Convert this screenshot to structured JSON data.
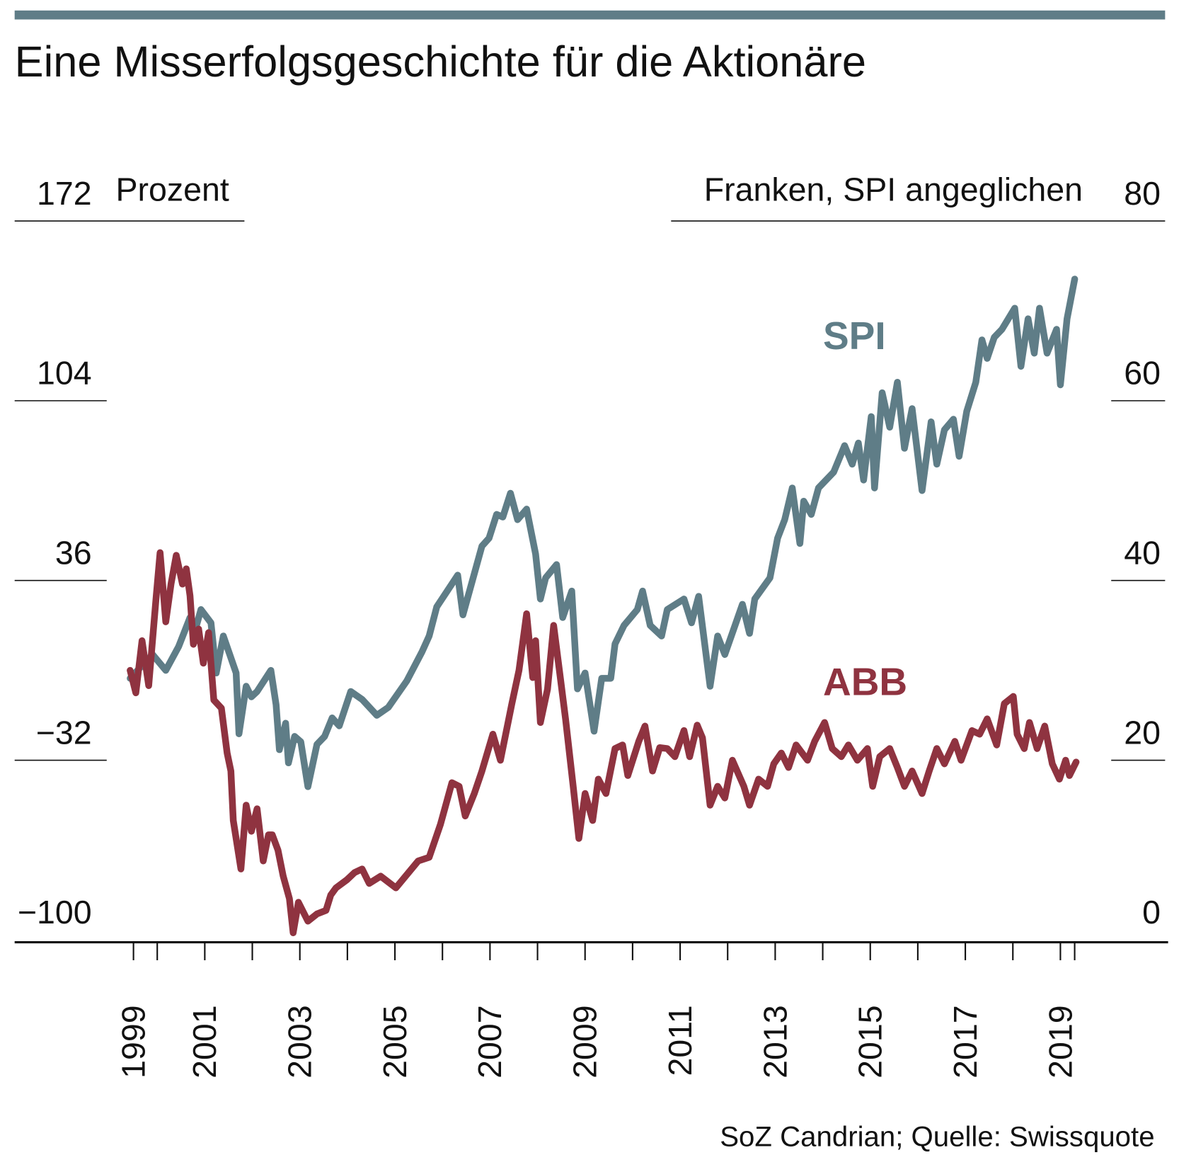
{
  "chart_data": {
    "type": "line",
    "title": "Eine Misserfolgsgeschichte für die Aktionäre",
    "y_label": "Prozent",
    "y2_label": "Franken, SPI angeglichen",
    "source": "SoZ Candrian; Quelle: Swissquote",
    "xlim": [
      1997,
      2021.25
    ],
    "xticks": [
      {
        "value": 1999.5,
        "label": "1999"
      },
      2001,
      2003,
      2005,
      2007,
      2009,
      2011,
      2013,
      2015,
      2017,
      2019
    ],
    "xminorticks": [
      2000,
      2002,
      2004,
      2006,
      2008,
      2010,
      2012,
      2014,
      2016,
      2018,
      2019.3
    ],
    "ylim": [
      -100,
      172
    ],
    "yticks": [
      {
        "value": -100,
        "label": "−100"
      },
      {
        "value": -32,
        "label": "−32"
      },
      36,
      104,
      172
    ],
    "y2lim": [
      0,
      80
    ],
    "y2ticks": [
      0,
      20,
      40,
      60,
      80
    ],
    "series": [
      {
        "name": "SPI",
        "color": "#5f7d87",
        "axis": "y",
        "x": [
          1999.43,
          1999.9,
          2000.18,
          2000.45,
          2000.69,
          2000.81,
          2000.92,
          2001.13,
          2001.24,
          2001.39,
          2001.66,
          2001.72,
          2001.87,
          2001.98,
          2002.1,
          2002.39,
          2002.5,
          2002.57,
          2002.7,
          2002.76,
          2002.89,
          2003.02,
          2003.17,
          2003.36,
          2003.52,
          2003.68,
          2003.83,
          2004.07,
          2004.31,
          2004.62,
          2004.86,
          2005.25,
          2005.57,
          2005.72,
          2005.88,
          2006.32,
          2006.43,
          2006.83,
          2006.98,
          2007.14,
          2007.27,
          2007.43,
          2007.58,
          2007.77,
          2007.96,
          2008.06,
          2008.17,
          2008.4,
          2008.53,
          2008.72,
          2008.84,
          2009.0,
          2009.19,
          2009.35,
          2009.54,
          2009.63,
          2009.82,
          2010.1,
          2010.21,
          2010.37,
          2010.61,
          2010.73,
          2011.08,
          2011.24,
          2011.39,
          2011.63,
          2011.79,
          2011.94,
          2012.31,
          2012.46,
          2012.57,
          2012.89,
          2013.05,
          2013.2,
          2013.36,
          2013.52,
          2013.6,
          2013.76,
          2013.91,
          2014.23,
          2014.46,
          2014.62,
          2014.75,
          2014.86,
          2015.02,
          2015.09,
          2015.25,
          2015.41,
          2015.57,
          2015.72,
          2015.88,
          2016.09,
          2016.28,
          2016.4,
          2016.56,
          2016.75,
          2016.87,
          2017.03,
          2017.22,
          2017.35,
          2017.46,
          2017.61,
          2017.77,
          2018.04,
          2018.17,
          2018.32,
          2018.45,
          2018.56,
          2018.72,
          2018.92,
          2019.0,
          2019.14,
          2019.3
        ],
        "values": [
          -1,
          8,
          2,
          11,
          22,
          18,
          25,
          20,
          1,
          15,
          1,
          -22,
          -4,
          -8,
          -6,
          2,
          -11,
          -28,
          -18,
          -33,
          -23,
          -25,
          -42,
          -26,
          -23,
          -16,
          -19,
          -6,
          -9,
          -15,
          -12,
          -2,
          9,
          15,
          26,
          38,
          23,
          49,
          52,
          61,
          60,
          69,
          59,
          63,
          46,
          29,
          37,
          42,
          22,
          32,
          -5,
          1,
          -21,
          -1,
          -1,
          12,
          19,
          25,
          32,
          19,
          15,
          25,
          29,
          20,
          30,
          -4,
          15,
          8,
          27,
          16,
          29,
          37,
          52,
          59,
          71,
          50,
          66,
          61,
          71,
          77,
          87,
          80,
          88,
          74,
          98,
          71,
          107,
          94,
          111,
          86,
          101,
          70,
          96,
          80,
          93,
          97,
          83,
          100,
          111,
          127,
          120,
          128,
          131,
          139,
          117,
          135,
          122,
          139,
          122,
          131,
          110,
          135,
          150
        ]
      },
      {
        "name": "ABB",
        "color": "#8f3340",
        "axis": "y2",
        "x": [
          1999.43,
          1999.55,
          1999.68,
          1999.82,
          1999.98,
          2000.06,
          2000.18,
          2000.29,
          2000.4,
          2000.53,
          2000.61,
          2000.69,
          2000.76,
          2000.87,
          2000.97,
          2001.08,
          2001.19,
          2001.35,
          2001.47,
          2001.55,
          2001.6,
          2001.76,
          2001.87,
          2001.98,
          2002.1,
          2002.23,
          2002.34,
          2002.42,
          2002.54,
          2002.65,
          2002.78,
          2002.86,
          2002.97,
          2003.17,
          2003.36,
          2003.55,
          2003.65,
          2003.76,
          2003.99,
          2004.15,
          2004.31,
          2004.46,
          2004.7,
          2005.02,
          2005.49,
          2005.72,
          2005.96,
          2006.2,
          2006.35,
          2006.48,
          2006.67,
          2006.83,
          2007.06,
          2007.22,
          2007.46,
          2007.61,
          2007.77,
          2007.9,
          2007.96,
          2008.06,
          2008.21,
          2008.34,
          2008.48,
          2008.59,
          2008.75,
          2008.87,
          2009.0,
          2009.16,
          2009.28,
          2009.44,
          2009.63,
          2009.79,
          2009.9,
          2010.13,
          2010.26,
          2010.42,
          2010.57,
          2010.73,
          2010.89,
          2011.08,
          2011.2,
          2011.36,
          2011.47,
          2011.63,
          2011.79,
          2011.94,
          2012.1,
          2012.34,
          2012.46,
          2012.65,
          2012.84,
          2012.97,
          2013.13,
          2013.28,
          2013.44,
          2013.68,
          2013.83,
          2014.04,
          2014.2,
          2014.39,
          2014.54,
          2014.73,
          2014.94,
          2015.05,
          2015.2,
          2015.41,
          2015.57,
          2015.72,
          2015.88,
          2016.09,
          2016.24,
          2016.4,
          2016.56,
          2016.78,
          2016.91,
          2017.14,
          2017.3,
          2017.46,
          2017.66,
          2017.82,
          2018.01,
          2018.09,
          2018.24,
          2018.35,
          2018.51,
          2018.67,
          2018.83,
          2018.98,
          2019.11,
          2019.19,
          2019.33
        ],
        "values": [
          30.0,
          27.5,
          33.3,
          28.3,
          38.3,
          43.1,
          35.4,
          39.6,
          42.8,
          39.6,
          41.3,
          38.3,
          32.9,
          34.6,
          30.8,
          34.2,
          26.7,
          25.8,
          20.8,
          18.8,
          13.3,
          7.9,
          15.0,
          12.1,
          14.6,
          8.8,
          11.7,
          11.7,
          10.0,
          7.1,
          4.6,
          0.8,
          4.2,
          2.1,
          2.9,
          3.3,
          5.0,
          5.8,
          6.7,
          7.5,
          7.9,
          6.3,
          7.1,
          5.8,
          8.8,
          9.2,
          12.9,
          17.5,
          17.1,
          13.8,
          16.3,
          18.8,
          22.9,
          20.0,
          26.3,
          30.0,
          36.3,
          29.2,
          33.3,
          24.2,
          27.9,
          35.0,
          29.2,
          24.6,
          17.1,
          11.3,
          16.3,
          13.3,
          17.9,
          16.3,
          21.3,
          21.7,
          18.3,
          22.1,
          23.8,
          18.8,
          21.4,
          21.3,
          20.4,
          23.3,
          20.4,
          23.9,
          22.5,
          15.0,
          17.1,
          15.8,
          20.0,
          17.1,
          15.0,
          17.9,
          17.1,
          19.6,
          20.8,
          19.2,
          21.7,
          20.0,
          22.1,
          24.2,
          21.3,
          20.4,
          21.7,
          20.0,
          21.3,
          17.1,
          20.4,
          21.3,
          19.2,
          17.1,
          18.8,
          16.3,
          18.8,
          21.3,
          19.6,
          22.1,
          20.0,
          23.3,
          22.9,
          24.6,
          21.7,
          26.3,
          27.1,
          22.9,
          21.3,
          24.2,
          21.3,
          23.8,
          19.6,
          17.9,
          20.0,
          18.3,
          19.8
        ]
      }
    ]
  }
}
